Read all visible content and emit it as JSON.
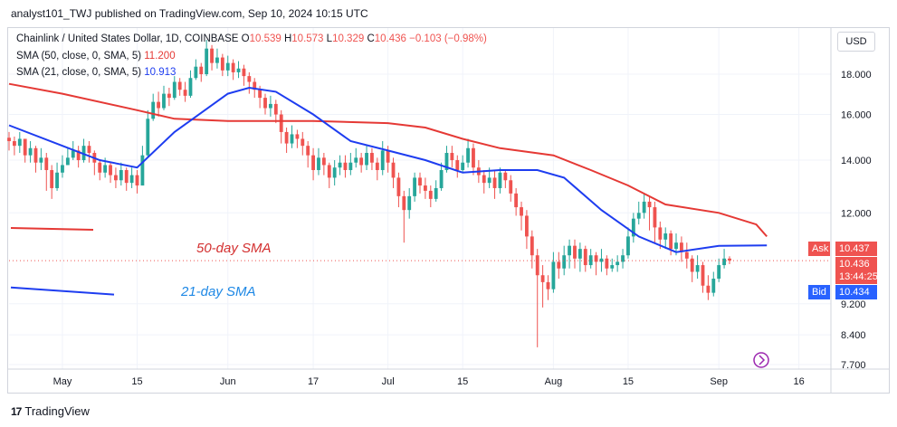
{
  "header": {
    "published": "analyst101_TWJ published on TradingView.com, Sep 10, 2024 10:15 UTC"
  },
  "legend": {
    "symbol": "Chainlink / United States Dollar, 1D, COINBASE",
    "ohlc": [
      {
        "k": "O",
        "v": "10.539"
      },
      {
        "k": "H",
        "v": "10.573"
      },
      {
        "k": "L",
        "v": "10.329"
      },
      {
        "k": "C",
        "v": "10.436"
      }
    ],
    "change": "−0.103 (−0.98%)",
    "sma50_label": "SMA (50, close, 0, SMA, 5)",
    "sma50_value": "11.200",
    "sma21_label": "SMA (21, close, 0, SMA, 5)",
    "sma21_value": "10.913"
  },
  "currency_button": "USD",
  "price_tags": {
    "ask_label": "Ask",
    "ask_value": "10.437",
    "last_value": "10.436",
    "countdown": "13:44:25",
    "bid_label": "Bid",
    "bid_value": "10.434"
  },
  "annotations": {
    "sma50": "50-day SMA",
    "sma21": "21-day SMA"
  },
  "footer": {
    "brand": "TradingView"
  },
  "colors": {
    "up": "#26a69a",
    "down": "#ef5350",
    "sma50": "#e53935",
    "sma21": "#1e3df0",
    "ask": "#ef5350",
    "bid": "#2962ff",
    "annot50": "#d32f2f",
    "annot21": "#1e88e5"
  },
  "chart_data": {
    "type": "candlestick",
    "y_axis": {
      "scale": "log",
      "ticks": [
        7.7,
        8.4,
        9.2,
        12.0,
        14.0,
        16.0,
        18.0
      ],
      "tick_labels": [
        "7.700",
        "8.400",
        "9.200",
        "12.000",
        "14.000",
        "16.000",
        "18.000"
      ],
      "range": [
        7.6,
        20.6
      ]
    },
    "x_axis": {
      "range": [
        "2024-04-21",
        "2024-09-22"
      ],
      "ticks": [
        {
          "date": "2024-05-01",
          "label": "May"
        },
        {
          "date": "2024-05-15",
          "label": "15"
        },
        {
          "date": "2024-06-01",
          "label": "Jun"
        },
        {
          "date": "2024-06-17",
          "label": "17"
        },
        {
          "date": "2024-07-01",
          "label": "Jul"
        },
        {
          "date": "2024-07-15",
          "label": "15"
        },
        {
          "date": "2024-08-01",
          "label": "Aug"
        },
        {
          "date": "2024-08-15",
          "label": "15"
        },
        {
          "date": "2024-09-01",
          "label": "Sep"
        },
        {
          "date": "2024-09-16",
          "label": "16"
        }
      ]
    },
    "grid": true,
    "series": [
      {
        "name": "Chainlink / United States Dollar",
        "kind": "ohlc",
        "start": "2024-04-21",
        "closes": [
          14.8,
          14.6,
          14.9,
          14.2,
          14.5,
          13.9,
          14.1,
          13.6,
          12.9,
          13.5,
          13.8,
          14.1,
          14.4,
          14.0,
          14.6,
          14.3,
          13.9,
          13.5,
          13.8,
          13.4,
          13.2,
          13.6,
          13.1,
          13.4,
          13.0,
          14.2,
          15.8,
          16.6,
          16.3,
          17.0,
          16.8,
          17.6,
          17.2,
          16.9,
          17.8,
          18.4,
          18.0,
          19.4,
          18.6,
          18.9,
          18.2,
          18.6,
          18.1,
          18.3,
          17.9,
          17.6,
          17.2,
          16.8,
          16.3,
          16.5,
          16.0,
          15.2,
          14.7,
          15.1,
          14.9,
          14.6,
          14.2,
          13.6,
          14.1,
          13.8,
          13.3,
          13.7,
          13.9,
          13.6,
          13.9,
          14.1,
          13.8,
          14.3,
          13.9,
          13.6,
          14.4,
          13.9,
          13.3,
          12.6,
          12.1,
          12.6,
          13.3,
          13.0,
          12.8,
          12.5,
          12.9,
          13.6,
          14.3,
          14.0,
          13.6,
          13.9,
          14.5,
          13.7,
          13.4,
          13.1,
          13.3,
          12.9,
          13.5,
          13.2,
          12.7,
          12.2,
          11.9,
          11.2,
          10.6,
          10.0,
          9.8,
          9.6,
          10.4,
          10.2,
          10.6,
          10.9,
          10.5,
          10.8,
          10.3,
          10.6,
          10.4,
          10.5,
          10.2,
          10.3,
          10.4,
          10.6,
          11.2,
          11.8,
          12.0,
          12.4,
          12.2,
          11.5,
          11.1,
          11.3,
          10.8,
          11.0,
          10.7,
          10.5,
          10.1,
          10.3,
          9.7,
          9.5,
          9.9,
          10.3,
          10.5,
          10.44
        ],
        "highs": [
          15.2,
          15.0,
          15.2,
          14.9,
          14.8,
          14.6,
          14.5,
          14.3,
          13.8,
          13.9,
          14.2,
          14.5,
          14.8,
          14.6,
          14.9,
          14.8,
          14.4,
          14.0,
          14.1,
          13.9,
          13.7,
          13.9,
          13.7,
          13.7,
          13.6,
          14.6,
          16.2,
          17.0,
          17.1,
          17.4,
          17.3,
          17.9,
          17.8,
          17.6,
          18.2,
          18.8,
          18.6,
          19.9,
          19.6,
          19.4,
          19.1,
          19.0,
          18.8,
          18.7,
          18.5,
          18.1,
          17.8,
          17.4,
          17.0,
          16.9,
          16.7,
          16.2,
          15.4,
          15.5,
          15.3,
          15.2,
          14.8,
          14.5,
          14.5,
          14.3,
          13.9,
          14.0,
          14.2,
          14.2,
          14.3,
          14.5,
          14.3,
          14.6,
          14.5,
          14.1,
          14.8,
          14.6,
          14.1,
          13.5,
          12.8,
          12.9,
          13.5,
          13.5,
          13.3,
          13.0,
          13.2,
          13.9,
          14.6,
          14.6,
          14.2,
          14.2,
          14.9,
          14.7,
          14.0,
          13.6,
          13.7,
          13.6,
          13.7,
          13.6,
          13.4,
          12.9,
          12.4,
          12.1,
          11.4,
          10.8,
          10.3,
          10.0,
          10.7,
          10.7,
          10.9,
          11.1,
          11.1,
          11.0,
          10.9,
          10.8,
          10.7,
          10.8,
          10.6,
          10.5,
          10.6,
          10.8,
          11.5,
          12.0,
          12.4,
          12.7,
          12.6,
          12.4,
          11.7,
          11.5,
          11.4,
          11.3,
          11.2,
          11.0,
          10.6,
          10.6,
          10.4,
          10.0,
          10.1,
          10.5,
          10.8,
          10.57
        ],
        "lows": [
          14.4,
          14.2,
          14.3,
          13.9,
          13.9,
          13.5,
          13.6,
          12.8,
          12.5,
          12.8,
          13.3,
          13.8,
          14.0,
          13.7,
          13.9,
          13.9,
          13.4,
          13.2,
          13.3,
          13.1,
          12.9,
          13.0,
          12.8,
          12.9,
          12.7,
          13.0,
          14.1,
          15.7,
          15.9,
          16.2,
          16.4,
          16.7,
          16.9,
          16.6,
          16.8,
          17.7,
          17.6,
          17.9,
          18.2,
          18.3,
          17.9,
          17.9,
          17.7,
          17.8,
          17.4,
          17.0,
          16.8,
          16.3,
          16.0,
          15.9,
          15.6,
          14.7,
          14.3,
          14.5,
          14.5,
          14.2,
          13.7,
          13.2,
          13.4,
          13.4,
          12.9,
          13.0,
          13.4,
          13.3,
          13.4,
          13.7,
          13.5,
          13.6,
          13.6,
          13.2,
          13.4,
          13.5,
          12.9,
          12.2,
          11.0,
          11.8,
          12.4,
          12.7,
          12.5,
          12.2,
          12.4,
          12.8,
          13.5,
          13.7,
          13.3,
          13.5,
          13.7,
          13.4,
          13.1,
          12.7,
          12.9,
          12.5,
          12.7,
          12.9,
          12.4,
          11.9,
          11.4,
          10.8,
          10.2,
          8.1,
          9.1,
          9.3,
          9.5,
          9.9,
          10.0,
          10.2,
          10.2,
          10.1,
          10.1,
          10.2,
          10.0,
          10.1,
          10.0,
          10.1,
          10.1,
          10.2,
          10.5,
          11.0,
          11.6,
          11.8,
          11.4,
          11.0,
          10.8,
          10.8,
          10.6,
          10.6,
          10.4,
          10.2,
          9.8,
          9.9,
          9.5,
          9.3,
          9.4,
          9.8,
          10.2,
          10.33
        ]
      },
      {
        "name": "SMA (50, close, 0, SMA, 5)",
        "kind": "line",
        "points": [
          [
            "2024-04-21",
            17.5
          ],
          [
            "2024-05-01",
            17.0
          ],
          [
            "2024-05-15",
            16.2
          ],
          [
            "2024-05-22",
            15.8
          ],
          [
            "2024-06-01",
            15.7
          ],
          [
            "2024-06-10",
            15.7
          ],
          [
            "2024-06-17",
            15.7
          ],
          [
            "2024-07-01",
            15.6
          ],
          [
            "2024-07-08",
            15.4
          ],
          [
            "2024-07-15",
            14.9
          ],
          [
            "2024-07-22",
            14.5
          ],
          [
            "2024-08-01",
            14.2
          ],
          [
            "2024-08-08",
            13.6
          ],
          [
            "2024-08-15",
            13.0
          ],
          [
            "2024-08-22",
            12.3
          ],
          [
            "2024-09-01",
            12.0
          ],
          [
            "2024-09-08",
            11.6
          ],
          [
            "2024-09-10",
            11.2
          ]
        ]
      },
      {
        "name": "SMA (21, close, 0, SMA, 5)",
        "kind": "line",
        "points": [
          [
            "2024-04-21",
            15.5
          ],
          [
            "2024-05-01",
            14.6
          ],
          [
            "2024-05-08",
            14.0
          ],
          [
            "2024-05-15",
            13.7
          ],
          [
            "2024-05-22",
            15.2
          ],
          [
            "2024-06-01",
            17.0
          ],
          [
            "2024-06-05",
            17.3
          ],
          [
            "2024-06-10",
            17.1
          ],
          [
            "2024-06-17",
            16.0
          ],
          [
            "2024-06-24",
            14.8
          ],
          [
            "2024-07-01",
            14.4
          ],
          [
            "2024-07-08",
            14.0
          ],
          [
            "2024-07-15",
            13.5
          ],
          [
            "2024-07-22",
            13.6
          ],
          [
            "2024-07-29",
            13.6
          ],
          [
            "2024-08-03",
            13.3
          ],
          [
            "2024-08-10",
            12.1
          ],
          [
            "2024-08-17",
            11.2
          ],
          [
            "2024-08-24",
            10.7
          ],
          [
            "2024-09-01",
            10.9
          ],
          [
            "2024-09-10",
            10.91
          ]
        ]
      }
    ],
    "price_line": 10.436,
    "legend_position": "top-left"
  }
}
